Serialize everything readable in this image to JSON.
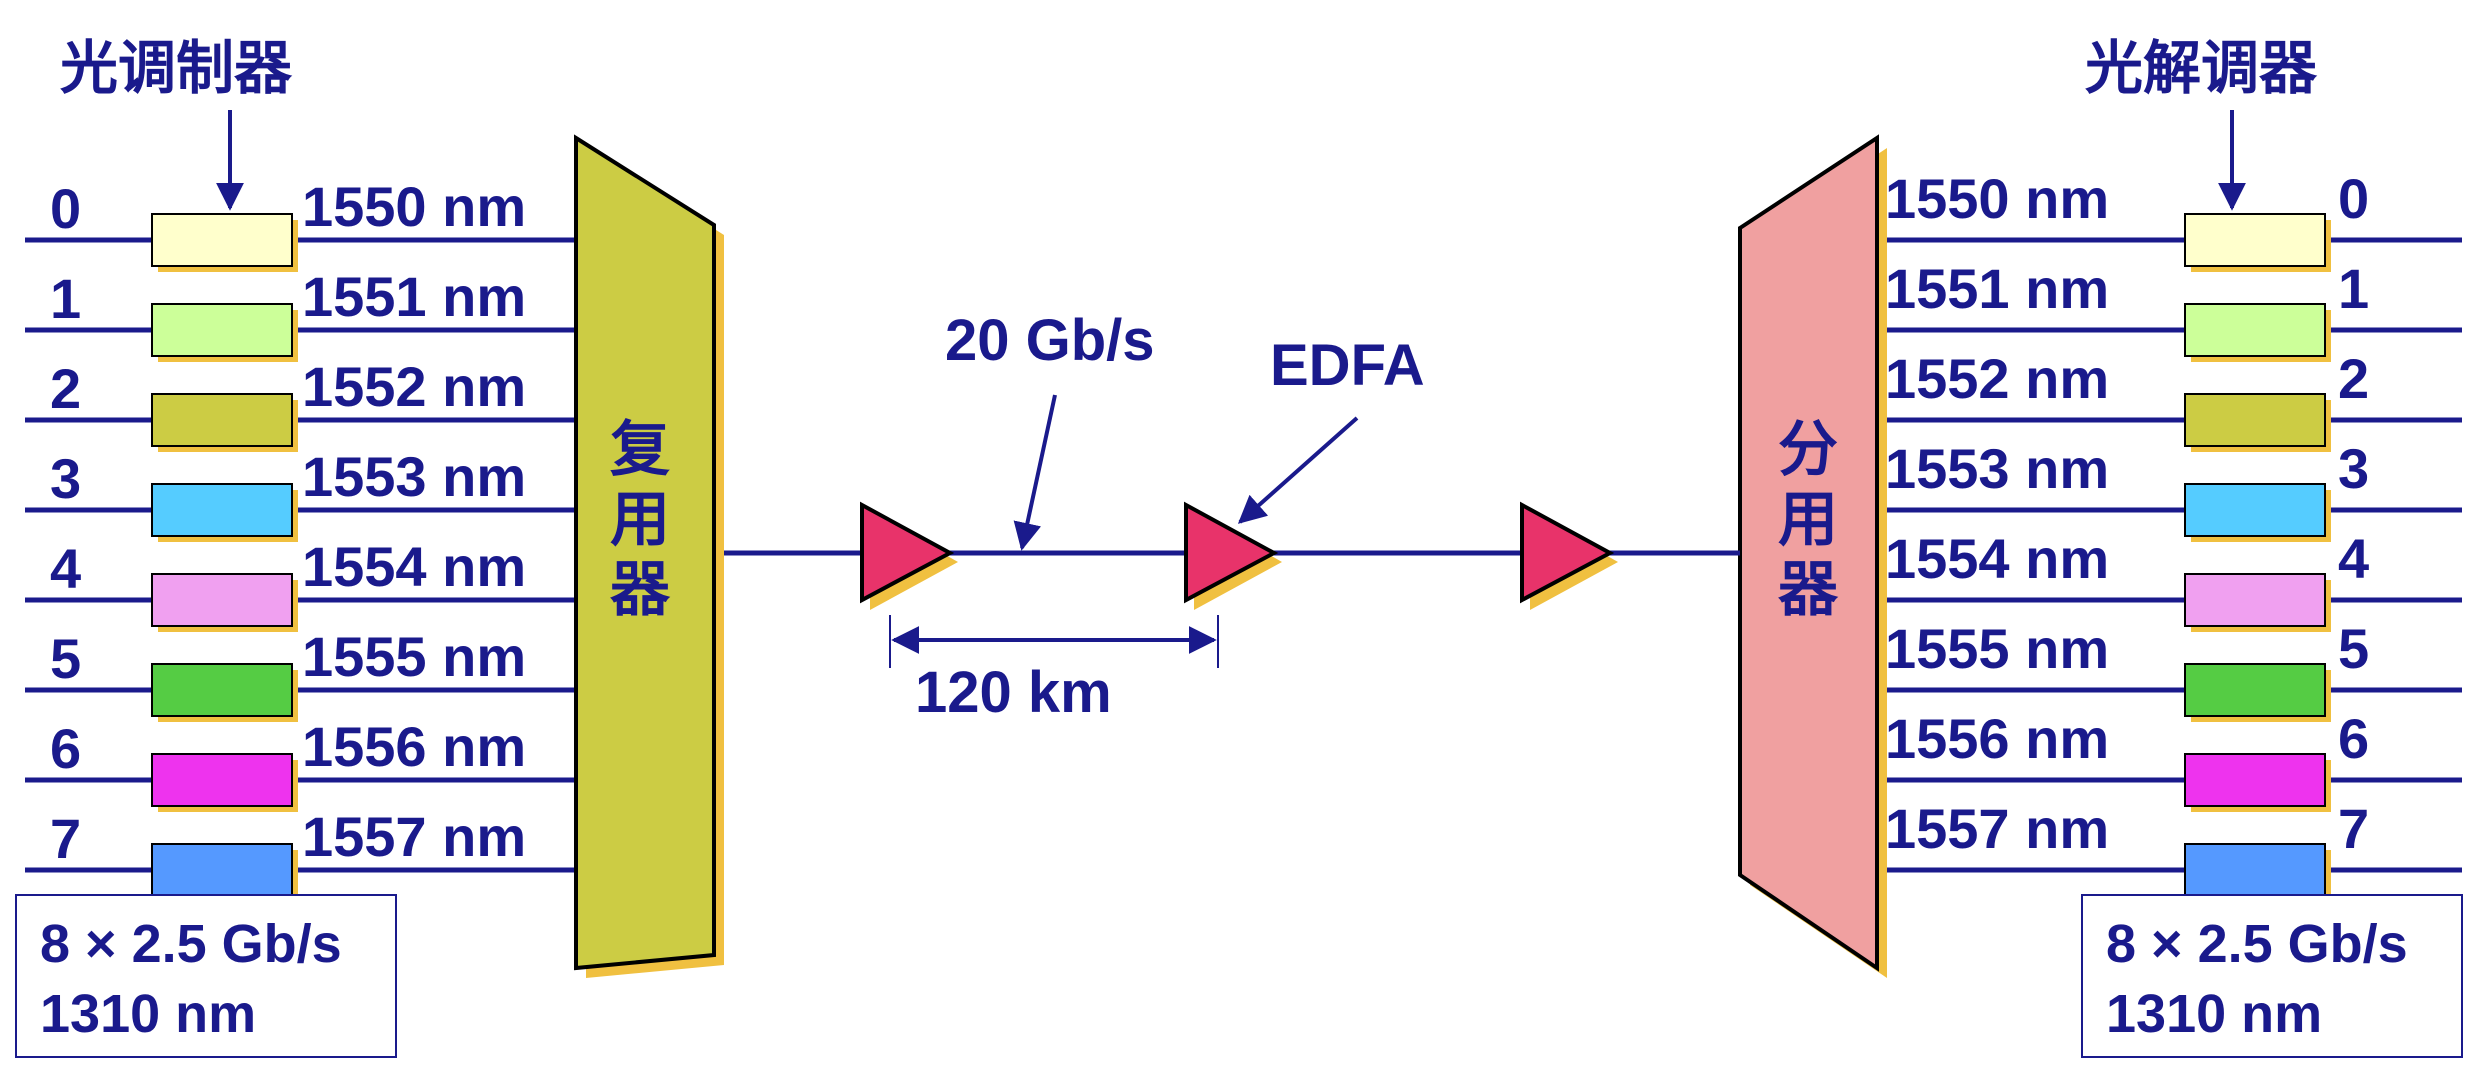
{
  "labels": {
    "modulator": "光调制器",
    "demodulator": "光解调器",
    "mux": [
      "复",
      "用",
      "器"
    ],
    "demux": [
      "分",
      "用",
      "器"
    ],
    "bitrate": "20 Gb/s",
    "edfa": "EDFA",
    "distance": "120 km"
  },
  "channels": [
    "0",
    "1",
    "2",
    "3",
    "4",
    "5",
    "6",
    "7"
  ],
  "wavelengths": [
    "1550 nm",
    "1551 nm",
    "1552 nm",
    "1553 nm",
    "1554 nm",
    "1555 nm",
    "1556 nm",
    "1557 nm"
  ],
  "channel_colors": [
    "#ffffcc",
    "#ccff99",
    "#cccc44",
    "#55ccff",
    "#f0a0f0",
    "#55cc44",
    "#ee33ee",
    "#5599ff"
  ],
  "input_box": {
    "line1": "8 × 2.5 Gb/s",
    "line2": "1310 nm"
  },
  "output_box": {
    "line1": "8 × 2.5 Gb/s",
    "line2": "1310 nm"
  },
  "colors": {
    "line": "#1a1a8c",
    "mux_fill": "#cccc44",
    "demux_fill": "#f0a0a0",
    "amp_fill": "#e8336a",
    "shadow": "#f0c040"
  }
}
